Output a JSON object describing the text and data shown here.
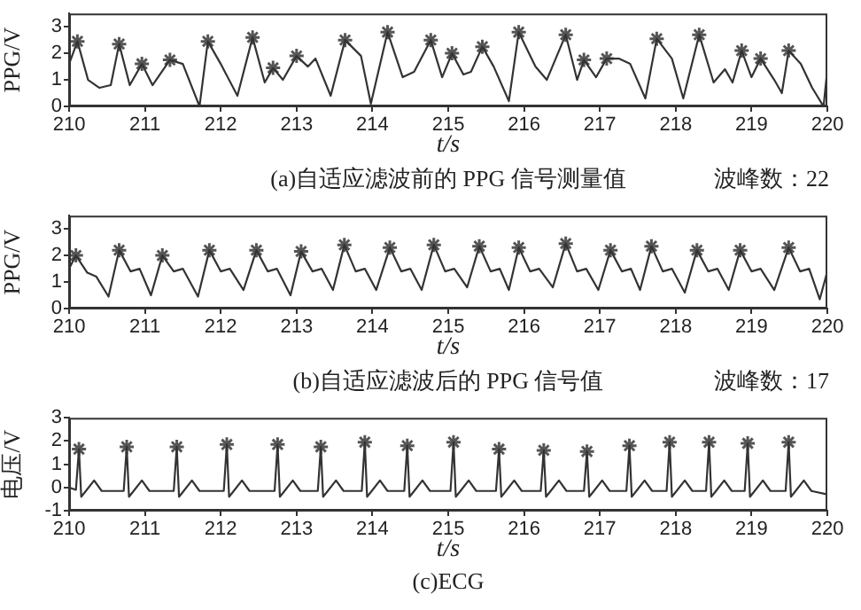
{
  "chart_data": [
    {
      "type": "line",
      "xlabel": "t/s",
      "ylabel": "PPG/V",
      "xlim": [
        210,
        220
      ],
      "xticks": [
        210,
        211,
        212,
        213,
        214,
        215,
        216,
        217,
        218,
        219,
        220
      ],
      "ylim": [
        0,
        3.5
      ],
      "yticks": [
        0,
        1,
        2,
        3
      ],
      "annotations": [
        "(a)自适应滤波前的 PPG 信号测量值",
        "波峰数：22"
      ],
      "series": [
        {
          "type": "line",
          "marker": "none",
          "color": "#333333",
          "x": [
            210.0,
            210.11,
            210.25,
            210.4,
            210.55,
            210.66,
            210.8,
            210.96,
            211.1,
            211.33,
            211.5,
            211.72,
            211.83,
            212.0,
            212.22,
            212.42,
            212.58,
            212.69,
            212.82,
            213.0,
            213.15,
            213.25,
            213.45,
            213.64,
            213.85,
            213.98,
            214.2,
            214.4,
            214.55,
            214.77,
            214.92,
            215.05,
            215.2,
            215.3,
            215.45,
            215.6,
            215.8,
            215.93,
            216.15,
            216.3,
            216.55,
            216.7,
            216.79,
            216.95,
            217.09,
            217.25,
            217.4,
            217.6,
            217.75,
            217.95,
            218.1,
            218.31,
            218.5,
            218.65,
            218.75,
            218.87,
            219.0,
            219.12,
            219.3,
            219.4,
            219.49,
            219.65,
            219.8,
            219.95,
            220.0
          ],
          "values": [
            1.6,
            2.45,
            1.0,
            0.7,
            0.8,
            2.35,
            0.8,
            1.6,
            0.8,
            1.75,
            1.6,
            0.0,
            2.45,
            1.6,
            0.4,
            2.6,
            0.9,
            1.45,
            1.0,
            1.9,
            1.5,
            1.8,
            0.4,
            2.5,
            1.9,
            0.1,
            2.8,
            1.1,
            1.3,
            2.5,
            1.1,
            2.0,
            1.2,
            1.3,
            2.25,
            1.5,
            0.2,
            2.8,
            1.5,
            1.0,
            2.7,
            1.0,
            1.75,
            1.1,
            1.8,
            1.8,
            1.6,
            0.3,
            2.55,
            1.8,
            0.3,
            2.7,
            0.9,
            1.4,
            0.9,
            2.1,
            1.1,
            1.8,
            1.0,
            0.5,
            2.1,
            1.6,
            0.7,
            0.0,
            1.4
          ]
        },
        {
          "type": "scatter",
          "marker": "cross",
          "color": "#555555",
          "x": [
            210.11,
            210.66,
            210.96,
            211.33,
            211.83,
            212.42,
            212.69,
            213.0,
            213.64,
            214.2,
            214.77,
            215.05,
            215.45,
            215.93,
            216.55,
            216.79,
            217.09,
            217.75,
            218.31,
            218.87,
            219.12,
            219.49
          ],
          "values": [
            2.45,
            2.35,
            1.6,
            1.75,
            2.45,
            2.6,
            1.45,
            1.9,
            2.5,
            2.8,
            2.5,
            2.0,
            2.25,
            2.8,
            2.7,
            1.75,
            1.8,
            2.55,
            2.7,
            2.1,
            1.8,
            2.1
          ]
        }
      ]
    },
    {
      "type": "line",
      "xlabel": "t/s",
      "ylabel": "PPG/V",
      "xlim": [
        210,
        220
      ],
      "xticks": [
        210,
        211,
        212,
        213,
        214,
        215,
        216,
        217,
        218,
        219,
        220
      ],
      "ylim": [
        0,
        3.5
      ],
      "yticks": [
        0,
        1,
        2,
        3
      ],
      "annotations": [
        "(b)自适应滤波后的 PPG 信号值",
        "波峰数：17"
      ],
      "series": [
        {
          "type": "line",
          "marker": "none",
          "color": "#333333",
          "x": [
            210.0,
            210.09,
            210.24,
            210.36,
            210.52,
            210.66,
            210.81,
            210.93,
            211.08,
            211.23,
            211.38,
            211.5,
            211.7,
            211.85,
            212.0,
            212.12,
            212.3,
            212.47,
            212.62,
            212.74,
            212.92,
            213.06,
            213.21,
            213.33,
            213.48,
            213.63,
            213.78,
            213.9,
            214.05,
            214.23,
            214.38,
            214.5,
            214.65,
            214.81,
            214.96,
            215.08,
            215.25,
            215.41,
            215.56,
            215.68,
            215.8,
            215.93,
            216.08,
            216.2,
            216.38,
            216.55,
            216.7,
            216.82,
            216.98,
            217.14,
            217.29,
            217.41,
            217.53,
            217.68,
            217.83,
            217.95,
            218.12,
            218.28,
            218.43,
            218.55,
            218.7,
            218.85,
            219.0,
            219.12,
            219.3,
            219.49,
            219.64,
            219.76,
            219.9,
            220.0
          ],
          "values": [
            1.5,
            2.0,
            1.35,
            1.2,
            0.45,
            2.2,
            1.4,
            1.5,
            0.5,
            2.0,
            1.4,
            1.5,
            0.45,
            2.2,
            1.4,
            1.5,
            0.7,
            2.2,
            1.4,
            1.5,
            0.5,
            2.15,
            1.4,
            1.5,
            0.7,
            2.4,
            1.4,
            1.5,
            0.7,
            2.3,
            1.4,
            1.5,
            0.7,
            2.4,
            1.4,
            1.5,
            0.8,
            2.35,
            1.4,
            1.5,
            0.7,
            2.3,
            1.4,
            1.5,
            0.8,
            2.45,
            1.4,
            1.5,
            0.7,
            2.2,
            1.4,
            1.5,
            0.7,
            2.35,
            1.4,
            1.5,
            0.6,
            2.2,
            1.4,
            1.5,
            0.7,
            2.2,
            1.4,
            1.5,
            0.7,
            2.3,
            1.4,
            1.5,
            0.35,
            1.4
          ]
        },
        {
          "type": "scatter",
          "marker": "cross",
          "color": "#555555",
          "x": [
            210.09,
            210.66,
            211.23,
            211.85,
            212.47,
            213.06,
            213.63,
            214.23,
            214.81,
            215.41,
            215.93,
            216.55,
            217.14,
            217.68,
            218.28,
            218.85,
            219.49
          ],
          "values": [
            2.0,
            2.2,
            2.0,
            2.2,
            2.2,
            2.15,
            2.4,
            2.3,
            2.4,
            2.35,
            2.3,
            2.45,
            2.2,
            2.35,
            2.2,
            2.2,
            2.3
          ]
        }
      ]
    },
    {
      "type": "line",
      "xlabel": "t/s",
      "ylabel": "电压/V",
      "xlim": [
        210,
        220
      ],
      "xticks": [
        210,
        211,
        212,
        213,
        214,
        215,
        216,
        217,
        218,
        219,
        220
      ],
      "ylim": [
        -1,
        3
      ],
      "yticks": [
        -1,
        0,
        1,
        2,
        3
      ],
      "annotations": [
        "(c)ECG"
      ],
      "series": [
        {
          "type": "line",
          "marker": "none",
          "color": "#333333",
          "x": [
            210.0,
            210.09,
            210.13,
            210.16,
            210.21,
            210.33,
            210.43,
            210.72,
            210.76,
            210.79,
            210.84,
            210.96,
            211.06,
            211.38,
            211.42,
            211.45,
            211.5,
            211.62,
            211.72,
            212.04,
            212.08,
            212.11,
            212.16,
            212.28,
            212.38,
            212.71,
            212.75,
            212.78,
            212.83,
            212.95,
            213.05,
            213.28,
            213.32,
            213.35,
            213.4,
            213.52,
            213.62,
            213.86,
            213.9,
            213.93,
            213.98,
            214.1,
            214.2,
            214.42,
            214.46,
            214.49,
            214.54,
            214.66,
            214.76,
            215.03,
            215.07,
            215.1,
            215.15,
            215.27,
            215.37,
            215.63,
            215.67,
            215.7,
            215.75,
            215.87,
            215.97,
            216.22,
            216.26,
            216.29,
            216.34,
            216.46,
            216.56,
            216.79,
            216.83,
            216.86,
            216.91,
            217.03,
            217.13,
            217.35,
            217.39,
            217.42,
            217.47,
            217.59,
            217.69,
            217.88,
            217.92,
            217.95,
            218.0,
            218.12,
            218.22,
            218.4,
            218.44,
            218.47,
            218.52,
            218.64,
            218.74,
            218.91,
            218.95,
            218.98,
            219.03,
            219.15,
            219.25,
            219.45,
            219.49,
            219.52,
            219.57,
            219.69,
            219.79,
            220.0
          ],
          "values": [
            0.0,
            -0.1,
            1.65,
            -0.4,
            -0.2,
            0.3,
            -0.15,
            -0.15,
            1.75,
            -0.4,
            -0.2,
            0.3,
            -0.15,
            -0.15,
            1.75,
            -0.4,
            -0.2,
            0.3,
            -0.15,
            -0.15,
            1.85,
            -0.4,
            -0.2,
            0.3,
            -0.15,
            -0.15,
            1.85,
            -0.4,
            -0.2,
            0.3,
            -0.15,
            -0.15,
            1.75,
            -0.4,
            -0.2,
            0.3,
            -0.15,
            -0.15,
            1.95,
            -0.4,
            -0.2,
            0.3,
            -0.15,
            -0.15,
            1.8,
            -0.4,
            -0.2,
            0.3,
            -0.15,
            -0.15,
            1.95,
            -0.4,
            -0.2,
            0.3,
            -0.15,
            -0.15,
            1.65,
            -0.4,
            -0.2,
            0.3,
            -0.15,
            -0.15,
            1.6,
            -0.4,
            -0.2,
            0.3,
            -0.15,
            -0.15,
            1.55,
            -0.4,
            -0.2,
            0.3,
            -0.15,
            -0.15,
            1.8,
            -0.4,
            -0.2,
            0.3,
            -0.15,
            -0.15,
            1.95,
            -0.4,
            -0.2,
            0.3,
            -0.15,
            -0.15,
            1.95,
            -0.4,
            -0.2,
            0.3,
            -0.15,
            -0.15,
            1.9,
            -0.4,
            -0.2,
            0.3,
            -0.15,
            -0.15,
            1.95,
            -0.4,
            -0.2,
            0.3,
            -0.15,
            -0.3
          ]
        },
        {
          "type": "scatter",
          "marker": "cross",
          "color": "#555555",
          "x": [
            210.13,
            210.76,
            211.42,
            212.08,
            212.75,
            213.32,
            213.9,
            214.46,
            215.07,
            215.67,
            216.26,
            216.83,
            217.39,
            217.92,
            218.44,
            218.95,
            219.49
          ],
          "values": [
            1.65,
            1.75,
            1.75,
            1.85,
            1.85,
            1.75,
            1.95,
            1.8,
            1.95,
            1.65,
            1.6,
            1.55,
            1.8,
            1.95,
            1.95,
            1.9,
            1.95
          ]
        }
      ]
    }
  ]
}
